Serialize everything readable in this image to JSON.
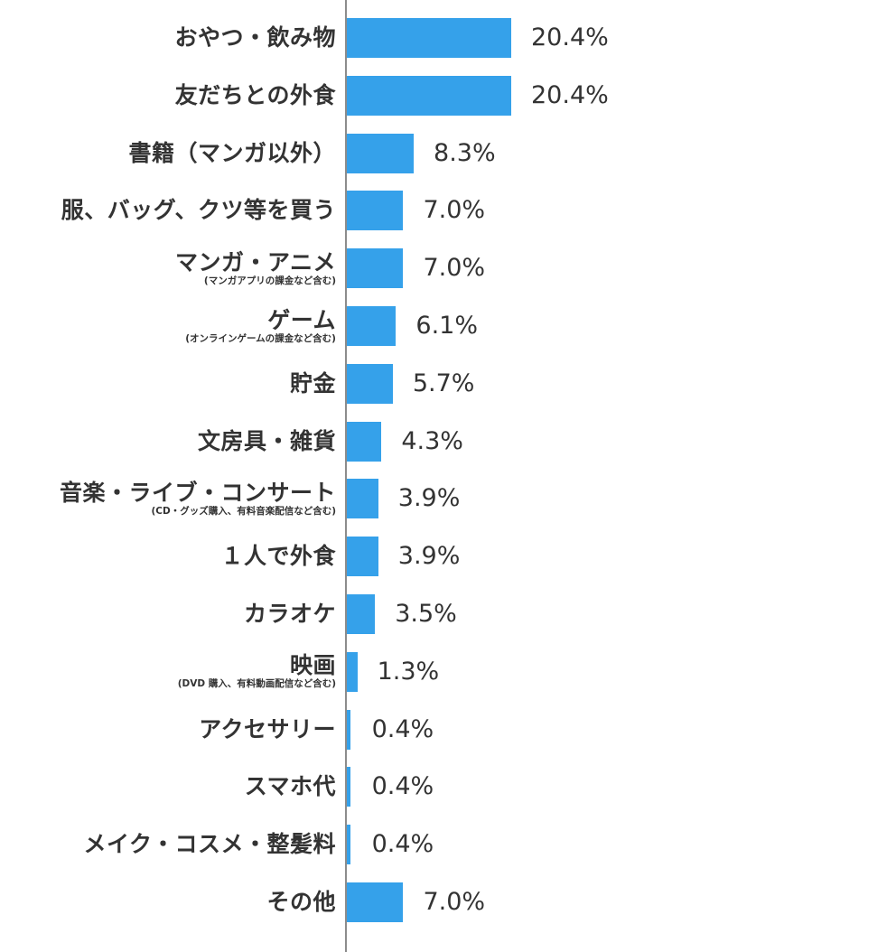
{
  "chart_data": {
    "type": "bar",
    "orientation": "horizontal",
    "color": "#35a1ea",
    "xlim": [
      0,
      20.4
    ],
    "grid": false,
    "categories": [
      {
        "label": "おやつ・飲み物",
        "sublabel": "",
        "value": 20.4,
        "value_label": "20.4%"
      },
      {
        "label": "友だちとの外食",
        "sublabel": "",
        "value": 20.4,
        "value_label": "20.4%"
      },
      {
        "label": "書籍（マンガ以外）",
        "sublabel": "",
        "value": 8.3,
        "value_label": "8.3%"
      },
      {
        "label": "服、バッグ、クツ等を買う",
        "sublabel": "",
        "value": 7.0,
        "value_label": "7.0%"
      },
      {
        "label": "マンガ・アニメ",
        "sublabel": "(マンガアプリの課金など含む)",
        "value": 7.0,
        "value_label": "7.0%"
      },
      {
        "label": "ゲーム",
        "sublabel": "(オンラインゲームの課金など含む)",
        "value": 6.1,
        "value_label": "6.1%"
      },
      {
        "label": "貯金",
        "sublabel": "",
        "value": 5.7,
        "value_label": "5.7%"
      },
      {
        "label": "文房具・雑貨",
        "sublabel": "",
        "value": 4.3,
        "value_label": "4.3%"
      },
      {
        "label": "音楽・ライブ・コンサート",
        "sublabel": "(CD・グッズ購入、有料音楽配信など含む)",
        "value": 3.9,
        "value_label": "3.9%"
      },
      {
        "label": "１人で外食",
        "sublabel": "",
        "value": 3.9,
        "value_label": "3.9%"
      },
      {
        "label": "カラオケ",
        "sublabel": "",
        "value": 3.5,
        "value_label": "3.5%"
      },
      {
        "label": "映画",
        "sublabel": "(DVD 購入、有料動画配信など含む)",
        "value": 1.3,
        "value_label": "1.3%"
      },
      {
        "label": "アクセサリー",
        "sublabel": "",
        "value": 0.4,
        "value_label": "0.4%"
      },
      {
        "label": "スマホ代",
        "sublabel": "",
        "value": 0.4,
        "value_label": "0.4%"
      },
      {
        "label": "メイク・コスメ・整髪料",
        "sublabel": "",
        "value": 0.4,
        "value_label": "0.4%"
      },
      {
        "label": "その他",
        "sublabel": "",
        "value": 7.0,
        "value_label": "7.0%"
      }
    ]
  }
}
